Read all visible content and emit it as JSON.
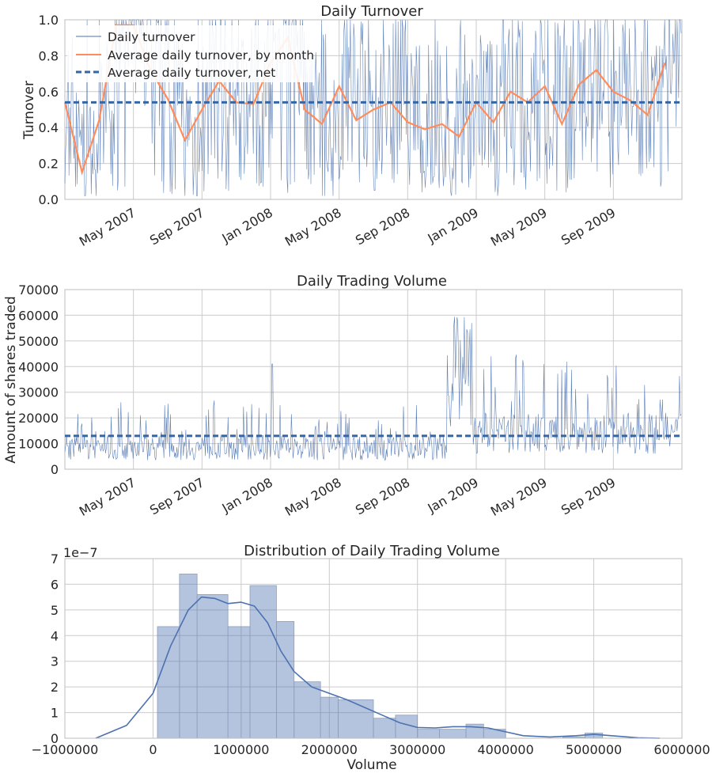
{
  "chart_data": [
    {
      "type": "line",
      "title": "Daily Turnover",
      "ylabel": "Turnover",
      "xlabel": "",
      "ylim": [
        0,
        1.0
      ],
      "yticks": [
        "0.0",
        "0.2",
        "0.4",
        "0.6",
        "0.8",
        "1.0"
      ],
      "xticks": [
        "May 2007",
        "Sep 2007",
        "Jan 2008",
        "May 2008",
        "Sep 2008",
        "Jan 2009",
        "May 2009",
        "Sep 2009"
      ],
      "x_range": [
        "2007-01",
        "2009-12"
      ],
      "grid": true,
      "legend": "top-left",
      "colors": {
        "daily": "#4c72b0",
        "monthly": "#ff8c5a",
        "net": "#3465a4"
      },
      "series": [
        {
          "name": "Daily turnover",
          "style": "thin-line",
          "note_values": "noisy daily series between 0.02 and 1.0"
        },
        {
          "name": "Average daily turnover, by month",
          "x": [
            "2007-01",
            "2007-02",
            "2007-03",
            "2007-04",
            "2007-05",
            "2007-06",
            "2007-07",
            "2007-08",
            "2007-09",
            "2007-10",
            "2007-11",
            "2007-12",
            "2008-01",
            "2008-02",
            "2008-03",
            "2008-04",
            "2008-05",
            "2008-06",
            "2008-07",
            "2008-08",
            "2008-09",
            "2008-10",
            "2008-11",
            "2008-12",
            "2009-01",
            "2009-02",
            "2009-03",
            "2009-04",
            "2009-05",
            "2009-06",
            "2009-07",
            "2009-08",
            "2009-09",
            "2009-10",
            "2009-11",
            "2009-12"
          ],
          "values": [
            0.54,
            0.15,
            0.44,
            0.97,
            0.97,
            0.72,
            0.56,
            0.33,
            0.5,
            0.66,
            0.54,
            0.53,
            0.76,
            0.9,
            0.5,
            0.42,
            0.63,
            0.44,
            0.5,
            0.54,
            0.43,
            0.39,
            0.42,
            0.35,
            0.54,
            0.43,
            0.6,
            0.54,
            0.63,
            0.42,
            0.64,
            0.72,
            0.6,
            0.55,
            0.47,
            0.76
          ]
        },
        {
          "name": "Average daily turnover, net",
          "style": "dashed",
          "value": 0.54
        }
      ]
    },
    {
      "type": "line",
      "title": "Daily Trading Volume",
      "ylabel": "Amount of shares traded",
      "xlabel": "",
      "ylim": [
        0,
        70000
      ],
      "yticks": [
        "0",
        "10000",
        "20000",
        "30000",
        "40000",
        "50000",
        "60000",
        "70000"
      ],
      "xticks": [
        "May 2007",
        "Sep 2007",
        "Jan 2008",
        "May 2008",
        "Sep 2008",
        "Jan 2009",
        "May 2009",
        "Sep 2009"
      ],
      "x_range": [
        "2007-01",
        "2009-12"
      ],
      "grid": true,
      "colors": {
        "daily": "#4c72b0",
        "net": "#3465a4"
      },
      "series": [
        {
          "name": "",
          "style": "thin-line",
          "note_values": "daily volume mostly 3000-25000, spikes to ~64000 in Nov 2008"
        },
        {
          "name": "",
          "style": "dashed",
          "value": 13000
        }
      ]
    },
    {
      "type": "bar",
      "title": "Distribution of Daily Trading Volume",
      "xlabel": "Volume",
      "ylabel": "",
      "ylim": [
        0,
        7
      ],
      "xlim": [
        -1000000,
        6000000
      ],
      "y_scale_label": "1e−7",
      "yticks": [
        "0",
        "1",
        "2",
        "3",
        "4",
        "5",
        "6",
        "7"
      ],
      "xticks": [
        "−1000000",
        "0",
        "1000000",
        "2000000",
        "3000000",
        "4000000",
        "5000000",
        "6000000"
      ],
      "grid": true,
      "colors": {
        "bars": "#4c72b0",
        "kde": "#4c72b0"
      },
      "bins": [
        {
          "from": 50000,
          "to": 300000,
          "value": 4.35
        },
        {
          "from": 300000,
          "to": 500000,
          "value": 6.4
        },
        {
          "from": 500000,
          "to": 850000,
          "value": 5.6
        },
        {
          "from": 850000,
          "to": 1100000,
          "value": 4.35
        },
        {
          "from": 1100000,
          "to": 1400000,
          "value": 5.95
        },
        {
          "from": 1400000,
          "to": 1600000,
          "value": 4.55
        },
        {
          "from": 1600000,
          "to": 1900000,
          "value": 2.2
        },
        {
          "from": 1900000,
          "to": 2100000,
          "value": 1.6
        },
        {
          "from": 2100000,
          "to": 2500000,
          "value": 1.5
        },
        {
          "from": 2500000,
          "to": 2750000,
          "value": 0.78
        },
        {
          "from": 2750000,
          "to": 3000000,
          "value": 0.9
        },
        {
          "from": 3000000,
          "to": 3250000,
          "value": 0.35
        },
        {
          "from": 3250000,
          "to": 3550000,
          "value": 0.35
        },
        {
          "from": 3550000,
          "to": 3750000,
          "value": 0.55
        },
        {
          "from": 3750000,
          "to": 4000000,
          "value": 0.35
        },
        {
          "from": 4650000,
          "to": 4900000,
          "value": 0.05
        },
        {
          "from": 4900000,
          "to": 5100000,
          "value": 0.2
        }
      ],
      "kde": {
        "x": [
          -650000,
          -300000,
          0,
          200000,
          400000,
          550000,
          700000,
          850000,
          1000000,
          1150000,
          1300000,
          1450000,
          1600000,
          1800000,
          2000000,
          2200000,
          2400000,
          2600000,
          2800000,
          3000000,
          3200000,
          3400000,
          3600000,
          3800000,
          4000000,
          4200000,
          4500000,
          4800000,
          5000000,
          5200000,
          5500000,
          5750000
        ],
        "values": [
          0.0,
          0.5,
          1.75,
          3.6,
          5.0,
          5.5,
          5.45,
          5.25,
          5.3,
          5.15,
          4.5,
          3.4,
          2.6,
          2.0,
          1.75,
          1.5,
          1.2,
          0.9,
          0.6,
          0.42,
          0.4,
          0.45,
          0.45,
          0.4,
          0.25,
          0.1,
          0.05,
          0.1,
          0.15,
          0.1,
          0.02,
          0.0
        ]
      }
    }
  ]
}
